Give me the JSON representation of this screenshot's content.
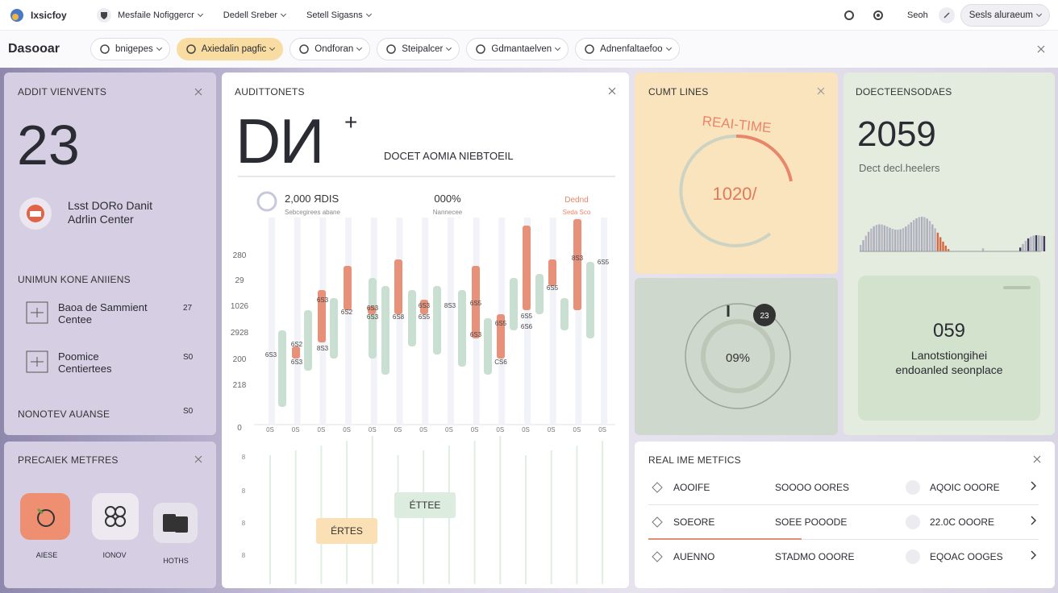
{
  "topbar": {
    "brand": "Ixsicfoy",
    "menus": [
      "Mesfaile Nofiggercr",
      "Dedell Sreber",
      "Setell Sigasns"
    ],
    "search": "Seoh",
    "user": "Sesls aluraeum"
  },
  "toolbar": {
    "title": "Dasooar",
    "chips": [
      "bnigepes",
      "Axiedalin pagfic",
      "Ondforan",
      "Steipalcer",
      "Gdmantaelven",
      "Adnenfaltaefoo"
    ]
  },
  "audit_events": {
    "title": "ADDIT VIENVENTS",
    "count": "23",
    "profile": [
      "Lsst DORo Danit",
      "Adrlin Center"
    ],
    "section": "UNIMUN KONE ANIIENS",
    "items": [
      {
        "label": [
          "Baoa de Sammient",
          "Centee"
        ],
        "value": "27"
      },
      {
        "label": [
          "Poomice",
          "Centiertees"
        ],
        "value": "S0"
      }
    ],
    "footer": {
      "label": "NONOTEV AUANSE",
      "value": "S0"
    }
  },
  "precaiek": {
    "title": "PRECAIEK METFRES",
    "apps": [
      "AIESE",
      "IONOV",
      "HOTHS"
    ]
  },
  "auditto": {
    "title": "AUDITTONETS",
    "headline": "DИ",
    "plus": "+",
    "subtitle": "DOCET AOMIA NIEBTOEIL",
    "legend": [
      {
        "value": "2,000 ЯDIS",
        "note": "Sebcegirees abane"
      },
      {
        "value": "000%",
        "note": "Nannecee"
      },
      {
        "value": "Dednd",
        "note": "Seda Sco"
      }
    ],
    "y_labels": [
      "280",
      "29",
      "1026",
      "2928",
      "200",
      "218",
      "0"
    ],
    "x_labels": [
      "0S",
      "0S",
      "0S",
      "0S",
      "0S",
      "0S",
      "0S",
      "0S",
      "0S",
      "0S",
      "0S",
      "0S",
      "0S",
      "0S"
    ],
    "bar_labels": [
      "6S3",
      "6S2",
      "6S3",
      "6S3",
      "8S3",
      "6S2",
      "6S3",
      "6S3",
      "6S8",
      "6S3",
      "6S5",
      "8S3",
      "6S5",
      "6S3",
      "6S5",
      "CS6",
      "6S5",
      "6S6",
      "6S5",
      "8S3",
      "6S5"
    ],
    "lower_y": [
      "8",
      "8",
      "8",
      "8"
    ],
    "tags": [
      "ÉTTEE",
      "ÉRTES"
    ]
  },
  "cumt": {
    "title": "CUMT LINES",
    "arc_label": "REAI-TIME",
    "value": "1020/"
  },
  "ring": {
    "badge": "23",
    "value": "09%"
  },
  "doect": {
    "title": "DOECTEENSODAES",
    "count": "2059",
    "subtitle": "Dect decl.heelers",
    "inner_value": "059",
    "inner_text": [
      "Lanotstiongihei",
      "endoanled seonplace"
    ]
  },
  "real_metrics": {
    "title": "REAL IME METFICS",
    "rows": [
      {
        "name": "AOOIFE",
        "v1": "SOOOO OORES",
        "v2": "AQOIC OOORE"
      },
      {
        "name": "SOEORE",
        "v1": "SOEE POOODE",
        "v2": "22.0C OOORE"
      },
      {
        "name": "AUENNO",
        "v1": "STADMO OOORE",
        "v2": "EQOAC OOGES"
      }
    ]
  }
}
